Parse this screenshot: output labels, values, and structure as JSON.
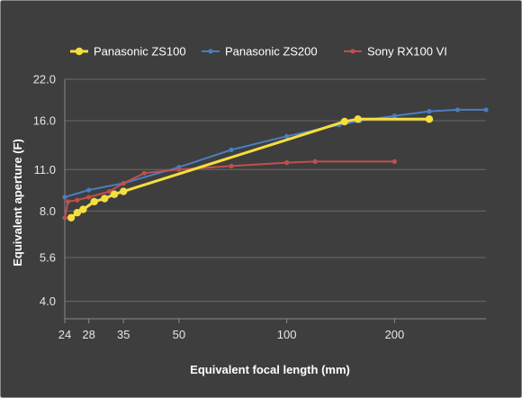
{
  "chart_data": {
    "type": "line",
    "xlabel": "Equivalent focal length (mm)",
    "ylabel": "Equivalent aperture (F)",
    "x_scale": "log",
    "y_scale": "log",
    "xlim": [
      24,
      360
    ],
    "ylim": [
      3.5,
      22.0
    ],
    "x_ticks": [
      24,
      28,
      35,
      50,
      100,
      200
    ],
    "y_ticks": [
      4.0,
      5.6,
      8.0,
      11.0,
      16.0,
      22.0
    ],
    "x_tick_labels": [
      "24",
      "28",
      "35",
      "50",
      "100",
      "200"
    ],
    "y_tick_labels": [
      "4.0",
      "5.6",
      "8.0",
      "11.0",
      "16.0",
      "22.0"
    ],
    "grid": "horizontal",
    "legend_position": "top",
    "series": [
      {
        "name": "Panasonic ZS100",
        "color": "#f5de3f",
        "marker": "large-circle",
        "points": [
          [
            25,
            7.6
          ],
          [
            26,
            7.9
          ],
          [
            27,
            8.1
          ],
          [
            29,
            8.6
          ],
          [
            31,
            8.8
          ],
          [
            33,
            9.1
          ],
          [
            35,
            9.3
          ],
          [
            145,
            15.9
          ],
          [
            158,
            16.2
          ],
          [
            250,
            16.2
          ]
        ]
      },
      {
        "name": "Panasonic ZS200",
        "color": "#4a7ec2",
        "marker": "small-circle",
        "points": [
          [
            24,
            8.9
          ],
          [
            28,
            9.4
          ],
          [
            35,
            9.9
          ],
          [
            50,
            11.2
          ],
          [
            70,
            12.8
          ],
          [
            100,
            14.2
          ],
          [
            140,
            15.5
          ],
          [
            160,
            16.0
          ],
          [
            200,
            16.6
          ],
          [
            250,
            17.2
          ],
          [
            300,
            17.4
          ],
          [
            360,
            17.4
          ]
        ]
      },
      {
        "name": "Sony RX100 VI",
        "color": "#c0504d",
        "marker": "small-circle",
        "points": [
          [
            24,
            7.6
          ],
          [
            24.5,
            8.6
          ],
          [
            26,
            8.7
          ],
          [
            28,
            8.9
          ],
          [
            32,
            9.3
          ],
          [
            35,
            9.9
          ],
          [
            40,
            10.7
          ],
          [
            50,
            11.0
          ],
          [
            70,
            11.3
          ],
          [
            100,
            11.6
          ],
          [
            120,
            11.7
          ],
          [
            200,
            11.7
          ]
        ]
      }
    ]
  }
}
